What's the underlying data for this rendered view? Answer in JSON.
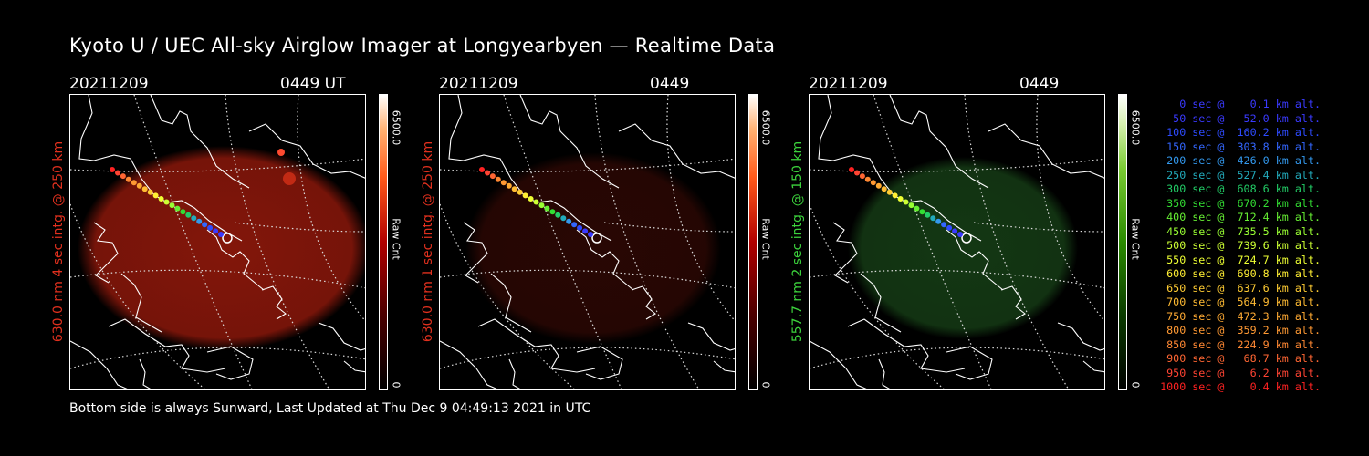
{
  "title": "Kyoto U / UEC All-sky Airglow Imager at Longyearbyen — Realtime Data",
  "footer": "Bottom side is always Sunward, Last Updated at Thu Dec  9 04:49:13 2021 in UTC",
  "panels": [
    {
      "date": "20211209",
      "time": "0449 UT",
      "label": "630.0 nm 4 sec intg. @ 250 km",
      "label_color": "#e0301e",
      "cbar_max": "6500.0",
      "cbar_unit": "Raw Cnt",
      "cbar_min": "0",
      "colormap": "red",
      "glow_color": "#9a1a0c",
      "glow_opacity": 0.85
    },
    {
      "date": "20211209",
      "time": "0449 UT",
      "label": "630.0 nm 1 sec intg. @ 250 km",
      "label_color": "#e0301e",
      "cbar_max": "6500.0",
      "cbar_unit": "Raw Cnt",
      "cbar_min": "0",
      "colormap": "red",
      "glow_color": "#3a0a05",
      "glow_opacity": 0.7
    },
    {
      "date": "20211209",
      "time": "0449 UT",
      "label": "557.7 nm 2 sec intg. @ 150 km",
      "label_color": "#3cd23c",
      "cbar_max": "6500.0",
      "cbar_unit": "Raw Cnt",
      "cbar_min": "0",
      "colormap": "green",
      "glow_color": "#1a4a1a",
      "glow_opacity": 0.75
    }
  ],
  "legend": [
    {
      "text": "   0 sec @    0.1 km alt.",
      "color": "#3a3aff"
    },
    {
      "text": "  50 sec @   52.0 km alt.",
      "color": "#3a3aff"
    },
    {
      "text": " 100 sec @  160.2 km alt.",
      "color": "#2e4bff"
    },
    {
      "text": " 150 sec @  303.8 km alt.",
      "color": "#3366ff"
    },
    {
      "text": " 200 sec @  426.0 km alt.",
      "color": "#3399ee"
    },
    {
      "text": " 250 sec @  527.4 km alt.",
      "color": "#22aabb"
    },
    {
      "text": " 300 sec @  608.6 km alt.",
      "color": "#22cc66"
    },
    {
      "text": " 350 sec @  670.2 km alt.",
      "color": "#33dd33"
    },
    {
      "text": " 400 sec @  712.4 km alt.",
      "color": "#66ee33"
    },
    {
      "text": " 450 sec @  735.5 km alt.",
      "color": "#99ff33"
    },
    {
      "text": " 500 sec @  739.6 km alt.",
      "color": "#ccff33"
    },
    {
      "text": " 550 sec @  724.7 km alt.",
      "color": "#eeff33"
    },
    {
      "text": " 600 sec @  690.8 km alt.",
      "color": "#ffee33"
    },
    {
      "text": " 650 sec @  637.6 km alt.",
      "color": "#ffcc33"
    },
    {
      "text": " 700 sec @  564.9 km alt.",
      "color": "#ffbb33"
    },
    {
      "text": " 750 sec @  472.3 km alt.",
      "color": "#ffaa33"
    },
    {
      "text": " 800 sec @  359.2 km alt.",
      "color": "#ff9933"
    },
    {
      "text": " 850 sec @  224.9 km alt.",
      "color": "#ff8833"
    },
    {
      "text": " 900 sec @   68.7 km alt.",
      "color": "#ff6633"
    },
    {
      "text": " 950 sec @    6.2 km alt.",
      "color": "#ff4433"
    },
    {
      "text": "1000 sec @    0.4 km alt.",
      "color": "#ff2222"
    }
  ],
  "trajectory_colors": [
    "#ff2222",
    "#ff4433",
    "#ff6633",
    "#ff8833",
    "#ff9933",
    "#ffaa33",
    "#ffbb33",
    "#ffcc33",
    "#ffee33",
    "#eeff33",
    "#ccff33",
    "#99ff33",
    "#66ee33",
    "#33dd33",
    "#22cc66",
    "#22aabb",
    "#3399ee",
    "#3366ff",
    "#2e4bff",
    "#3a3aff",
    "#3a3aff"
  ]
}
